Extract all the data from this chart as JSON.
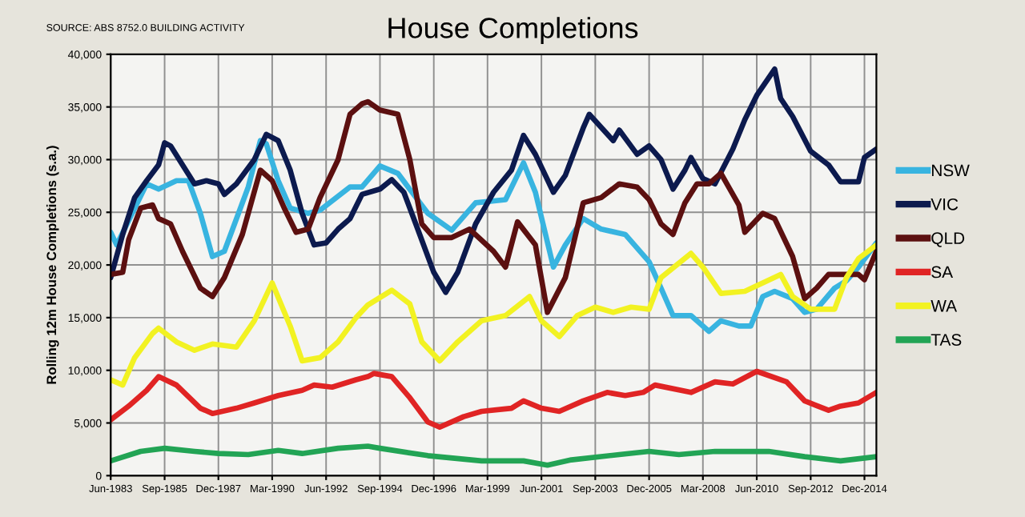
{
  "chart_data": {
    "type": "line",
    "title": "House Completions",
    "ylabel": "Rolling 12m House Completions (s.a.)",
    "annotations": [
      "SOURCE: ABS 8752.0 BUILDING ACTIVITY"
    ],
    "xlim": [
      "1983-06",
      "2015-06"
    ],
    "xticks": [
      {
        "value": "1983-06",
        "label": "Jun-1983"
      },
      {
        "value": "1985-09",
        "label": "Sep-1985"
      },
      {
        "value": "1987-12",
        "label": "Dec-1987"
      },
      {
        "value": "1990-03",
        "label": "Mar-1990"
      },
      {
        "value": "1992-06",
        "label": "Jun-1992"
      },
      {
        "value": "1994-09",
        "label": "Sep-1994"
      },
      {
        "value": "1996-12",
        "label": "Dec-1996"
      },
      {
        "value": "1999-03",
        "label": "Mar-1999"
      },
      {
        "value": "2001-06",
        "label": "Jun-2001"
      },
      {
        "value": "2003-09",
        "label": "Sep-2003"
      },
      {
        "value": "2005-12",
        "label": "Dec-2005"
      },
      {
        "value": "2008-03",
        "label": "Mar-2008"
      },
      {
        "value": "2010-06",
        "label": "Jun-2010"
      },
      {
        "value": "2012-09",
        "label": "Sep-2012"
      },
      {
        "value": "2014-12",
        "label": "Dec-2014"
      }
    ],
    "ylim": [
      0,
      40000
    ],
    "yticks": [
      0,
      {
        "value": 5000,
        "label": "5,000"
      },
      {
        "value": 10000,
        "label": "10,000"
      },
      {
        "value": 15000,
        "label": "15,000"
      },
      {
        "value": 20000,
        "label": "20,000"
      },
      {
        "value": 25000,
        "label": "25,000"
      },
      {
        "value": 30000,
        "label": "30,000"
      },
      {
        "value": 35000,
        "label": "35,000"
      },
      {
        "value": 40000,
        "label": "40,000"
      }
    ],
    "grid": true,
    "legend": "right",
    "marker": "none",
    "line_style": "solid",
    "series": [
      {
        "name": "NSW",
        "color": "#38b4e0",
        "x": [
          "1983-06",
          "1983-09",
          "1984-12",
          "1985-06",
          "1986-03",
          "1986-09",
          "1987-03",
          "1987-09",
          "1988-03",
          "1989-03",
          "1989-09",
          "1989-12",
          "1990-06",
          "1990-12",
          "1991-09",
          "1992-03",
          "1993-06",
          "1993-12",
          "1994-09",
          "1995-06",
          "1996-09",
          "1997-09",
          "1998-09",
          "1999-12",
          "2000-09",
          "2001-03",
          "2001-12",
          "2002-06",
          "2003-03",
          "2003-12",
          "2004-12",
          "2005-12",
          "2006-06",
          "2006-12",
          "2007-09",
          "2008-06",
          "2008-12",
          "2009-09",
          "2010-03",
          "2010-09",
          "2011-03",
          "2011-12",
          "2012-06",
          "2012-12",
          "2013-09",
          "2014-03",
          "2014-09",
          "2015-06"
        ],
        "values": [
          23100,
          21900,
          27700,
          27200,
          28000,
          28000,
          24900,
          20800,
          21300,
          27400,
          31800,
          31500,
          28000,
          25400,
          24900,
          25200,
          27400,
          27400,
          29400,
          28700,
          24900,
          23300,
          25900,
          26200,
          29700,
          26900,
          19800,
          21900,
          24400,
          23400,
          22900,
          20300,
          17800,
          15200,
          15200,
          13700,
          14700,
          14200,
          14200,
          17000,
          17500,
          16800,
          15500,
          15800,
          17800,
          18500,
          19800,
          22100
        ]
      },
      {
        "name": "VIC",
        "color": "#0c1a4e",
        "x": [
          "1983-06",
          "1983-12",
          "1984-06",
          "1984-12",
          "1985-06",
          "1985-09",
          "1985-12",
          "1986-06",
          "1986-12",
          "1987-06",
          "1987-12",
          "1988-03",
          "1988-09",
          "1989-06",
          "1989-12",
          "1990-06",
          "1990-12",
          "1991-06",
          "1991-12",
          "1992-06",
          "1992-12",
          "1993-06",
          "1993-12",
          "1994-09",
          "1995-03",
          "1995-09",
          "1996-03",
          "1996-12",
          "1997-06",
          "1997-12",
          "1998-09",
          "1999-06",
          "2000-03",
          "2000-09",
          "2001-03",
          "2001-12",
          "2002-06",
          "2003-03",
          "2003-06",
          "2004-06",
          "2004-09",
          "2005-06",
          "2005-12",
          "2006-06",
          "2006-12",
          "2007-06",
          "2007-09",
          "2008-03",
          "2008-09",
          "2009-06",
          "2009-12",
          "2010-06",
          "2011-03",
          "2011-06",
          "2011-12",
          "2012-09",
          "2013-06",
          "2013-12",
          "2014-09",
          "2014-12",
          "2015-06"
        ],
        "values": [
          18800,
          22900,
          26400,
          28000,
          29500,
          31600,
          31300,
          29500,
          27700,
          28000,
          27700,
          26700,
          27700,
          30000,
          32400,
          31800,
          29000,
          24900,
          21900,
          22100,
          23400,
          24400,
          26700,
          27200,
          28100,
          26900,
          23900,
          19300,
          17400,
          19300,
          23900,
          26900,
          29000,
          32300,
          30500,
          26900,
          28500,
          33000,
          34300,
          31800,
          32800,
          30500,
          31300,
          30000,
          27200,
          29000,
          30200,
          28200,
          27700,
          31000,
          33800,
          36100,
          38600,
          35800,
          34100,
          30800,
          29500,
          27900,
          27900,
          30200,
          31000
        ]
      },
      {
        "name": "QLD",
        "color": "#5c1010",
        "x": [
          "1983-06",
          "1983-12",
          "1984-03",
          "1984-09",
          "1985-03",
          "1985-06",
          "1985-12",
          "1986-06",
          "1987-03",
          "1987-09",
          "1988-03",
          "1988-12",
          "1989-09",
          "1990-03",
          "1990-09",
          "1991-03",
          "1991-09",
          "1992-03",
          "1992-12",
          "1993-06",
          "1993-12",
          "1994-03",
          "1994-09",
          "1995-06",
          "1995-12",
          "1996-06",
          "1996-12",
          "1997-09",
          "1998-06",
          "1999-06",
          "1999-12",
          "2000-06",
          "2001-03",
          "2001-09",
          "2002-06",
          "2003-03",
          "2003-12",
          "2004-09",
          "2005-06",
          "2005-12",
          "2006-06",
          "2006-12",
          "2007-06",
          "2007-12",
          "2008-06",
          "2008-12",
          "2009-09",
          "2009-12",
          "2010-09",
          "2011-03",
          "2011-12",
          "2012-06",
          "2012-12",
          "2013-06",
          "2013-12",
          "2014-09",
          "2014-12",
          "2015-06"
        ],
        "values": [
          19100,
          19300,
          22400,
          25400,
          25700,
          24400,
          23900,
          21300,
          17800,
          17000,
          18800,
          22900,
          29000,
          28000,
          25400,
          23100,
          23400,
          26400,
          30000,
          34300,
          35300,
          35500,
          34700,
          34300,
          30000,
          23900,
          22600,
          22600,
          23400,
          21300,
          19800,
          24100,
          21900,
          15500,
          18800,
          25900,
          26400,
          27700,
          27400,
          26200,
          23900,
          22900,
          25900,
          27700,
          27700,
          28700,
          25700,
          23100,
          24900,
          24400,
          20800,
          16800,
          17800,
          19100,
          19100,
          19100,
          18600,
          21300
        ]
      },
      {
        "name": "SA",
        "color": "#e02424",
        "x": [
          "1983-06",
          "1984-03",
          "1984-12",
          "1985-06",
          "1986-03",
          "1987-03",
          "1987-09",
          "1988-09",
          "1989-06",
          "1990-06",
          "1991-06",
          "1991-12",
          "1992-09",
          "1993-09",
          "1994-03",
          "1994-06",
          "1995-03",
          "1995-12",
          "1996-09",
          "1997-03",
          "1998-03",
          "1998-12",
          "2000-03",
          "2000-09",
          "2001-06",
          "2002-03",
          "2003-03",
          "2004-03",
          "2004-12",
          "2005-09",
          "2006-03",
          "2007-09",
          "2008-09",
          "2009-06",
          "2010-06",
          "2011-09",
          "2012-06",
          "2013-06",
          "2013-12",
          "2014-09",
          "2015-06"
        ],
        "values": [
          5300,
          6600,
          8100,
          9400,
          8600,
          6400,
          5900,
          6400,
          6900,
          7600,
          8100,
          8600,
          8400,
          9100,
          9400,
          9700,
          9400,
          7400,
          5100,
          4600,
          5600,
          6100,
          6400,
          7100,
          6400,
          6100,
          7100,
          7900,
          7600,
          7900,
          8600,
          7900,
          8900,
          8700,
          9900,
          8900,
          7100,
          6200,
          6600,
          6900,
          7900
        ]
      },
      {
        "name": "WA",
        "color": "#f2f222",
        "x": [
          "1983-06",
          "1983-12",
          "1984-06",
          "1985-03",
          "1985-06",
          "1986-03",
          "1986-12",
          "1987-09",
          "1988-09",
          "1989-06",
          "1990-03",
          "1990-12",
          "1991-06",
          "1992-03",
          "1992-12",
          "1993-09",
          "1994-03",
          "1995-03",
          "1995-12",
          "1996-06",
          "1997-03",
          "1997-12",
          "1998-12",
          "1999-12",
          "2000-12",
          "2001-06",
          "2002-03",
          "2002-12",
          "2003-09",
          "2004-06",
          "2005-03",
          "2005-12",
          "2006-06",
          "2007-09",
          "2008-03",
          "2008-12",
          "2009-12",
          "2010-09",
          "2011-06",
          "2011-12",
          "2012-09",
          "2013-09",
          "2014-03",
          "2014-09",
          "2015-06"
        ],
        "values": [
          9100,
          8600,
          11200,
          13500,
          14000,
          12700,
          11900,
          12500,
          12200,
          14700,
          18300,
          14200,
          10900,
          11200,
          12700,
          15000,
          16200,
          17600,
          16300,
          12700,
          10900,
          12700,
          14700,
          15200,
          17000,
          14700,
          13200,
          15200,
          16000,
          15500,
          16000,
          15800,
          18800,
          21100,
          19800,
          17300,
          17500,
          18300,
          19100,
          17000,
          15800,
          15800,
          18800,
          20600,
          21900
        ]
      },
      {
        "name": "TAS",
        "color": "#22a455",
        "x": [
          "1983-06",
          "1984-09",
          "1985-09",
          "1986-12",
          "1987-12",
          "1989-03",
          "1990-06",
          "1991-06",
          "1992-12",
          "1994-03",
          "1994-09",
          "1996-09",
          "1998-12",
          "2000-09",
          "2001-09",
          "2002-09",
          "2004-09",
          "2005-12",
          "2007-03",
          "2008-09",
          "2010-12",
          "2012-06",
          "2013-12",
          "2015-06"
        ],
        "values": [
          1400,
          2300,
          2600,
          2300,
          2100,
          2000,
          2400,
          2100,
          2600,
          2800,
          2600,
          1900,
          1400,
          1400,
          1000,
          1500,
          2000,
          2300,
          2000,
          2300,
          2300,
          1800,
          1400,
          1800
        ]
      }
    ]
  }
}
